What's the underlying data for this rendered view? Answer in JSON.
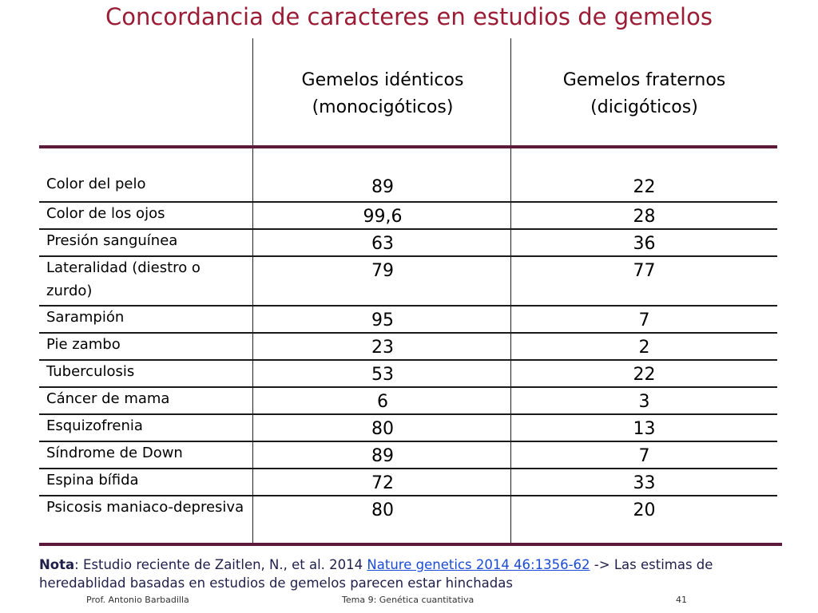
{
  "title": "Concordancia de caracteres en estudios de gemelos",
  "columns": {
    "mono": [
      "Gemelos idénticos",
      "(monocigóticos)"
    ],
    "di": [
      "Gemelos fraternos",
      "(dicigóticos)"
    ]
  },
  "rows": [
    {
      "label": "Color del pelo",
      "mono": "89",
      "di": "22"
    },
    {
      "label": "Color de los ojos",
      "mono": "99,6",
      "di": "28"
    },
    {
      "label": "Presión sanguínea",
      "mono": "63",
      "di": "36"
    },
    {
      "label": "Lateralidad (diestro o zurdo)",
      "mono": "79",
      "di": "77"
    },
    {
      "label": "Sarampión",
      "mono": "95",
      "di": "7"
    },
    {
      "label": "Pie zambo",
      "mono": "23",
      "di": "2"
    },
    {
      "label": "Tuberculosis",
      "mono": "53",
      "di": "22"
    },
    {
      "label": "Cáncer de mama",
      "mono": "6",
      "di": "3"
    },
    {
      "label": "Esquizofrenia",
      "mono": "80",
      "di": "13"
    },
    {
      "label": "Síndrome de Down",
      "mono": "89",
      "di": "7"
    },
    {
      "label": "Espina bífida",
      "mono": "72",
      "di": "33"
    },
    {
      "label": "Psicosis maniaco-depresiva",
      "mono": "80",
      "di": "20"
    }
  ],
  "note": {
    "prefix": "Nota",
    "text_before": ": Estudio reciente de Zaitlen, N., et al. 2014 ",
    "link": "Nature genetics  2014  46:1356-62",
    "text_after": " -> Las estimas de heredablidad basadas en estudios de gemelos parecen estar hinchadas"
  },
  "footer": {
    "author": "Prof. Antonio Barbadilla",
    "topic": "Tema 9: Genética cuantitativa",
    "page": "41"
  },
  "colors": {
    "title": "#9b1c35",
    "rule": "#5b1a3b",
    "link": "#1a4bd6"
  }
}
